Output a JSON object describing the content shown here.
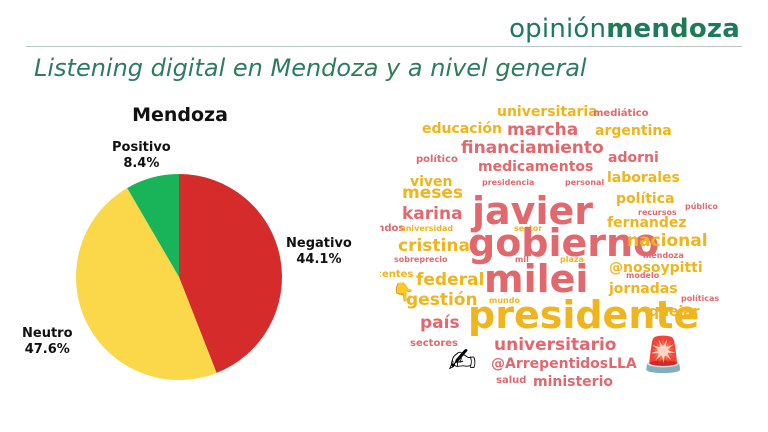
{
  "brand": {
    "prefix": "opinión",
    "suffix": "mendoza"
  },
  "page_title": "Listening digital en Mendoza y a nivel general",
  "colors": {
    "brand": "#1f7a5a",
    "positivo": "#19b35a",
    "negativo": "#d62b2b",
    "neutro": "#fbd84a",
    "cloud_red": "#e2686e",
    "cloud_yellow": "#f0b41c"
  },
  "chart_data": {
    "type": "pie",
    "title": "Mendoza",
    "slices": [
      {
        "label": "Negativo",
        "value": 44.1,
        "display": "44.1%",
        "color": "#d62b2b"
      },
      {
        "label": "Neutro",
        "value": 47.6,
        "display": "47.6%",
        "color": "#fbd84a"
      },
      {
        "label": "Positivo",
        "value": 8.4,
        "display": "8.4%",
        "color": "#19b35a"
      }
    ]
  },
  "wordcloud": {
    "words": [
      {
        "text": "universitaria",
        "color": "#f0b41c",
        "weight": 3
      },
      {
        "text": "mediático",
        "color": "#e2686e",
        "weight": 2
      },
      {
        "text": "educación",
        "color": "#f0b41c",
        "weight": 3
      },
      {
        "text": "marcha",
        "color": "#e2686e",
        "weight": 4
      },
      {
        "text": "argentina",
        "color": "#f0b41c",
        "weight": 3
      },
      {
        "text": "financiamiento",
        "color": "#e2686e",
        "weight": 4
      },
      {
        "text": "político",
        "color": "#e2686e",
        "weight": 2
      },
      {
        "text": "medicamentos",
        "color": "#e2686e",
        "weight": 3
      },
      {
        "text": "adorni",
        "color": "#e2686e",
        "weight": 3
      },
      {
        "text": "viven",
        "color": "#f0b41c",
        "weight": 3
      },
      {
        "text": "presidencia",
        "color": "#e2686e",
        "weight": 1
      },
      {
        "text": "personal",
        "color": "#e2686e",
        "weight": 1
      },
      {
        "text": "laborales",
        "color": "#f0b41c",
        "weight": 3
      },
      {
        "text": "meses",
        "color": "#f0b41c",
        "weight": 4
      },
      {
        "text": "javier",
        "color": "#e2686e",
        "weight": 6
      },
      {
        "text": "política",
        "color": "#f0b41c",
        "weight": 3
      },
      {
        "text": "público",
        "color": "#e2686e",
        "weight": 1
      },
      {
        "text": "karina",
        "color": "#e2686e",
        "weight": 4
      },
      {
        "text": "recursos",
        "color": "#e2686e",
        "weight": 1
      },
      {
        "text": "fernandez",
        "color": "#f0b41c",
        "weight": 3
      },
      {
        "text": "fondos",
        "color": "#e2686e",
        "weight": 2
      },
      {
        "text": "universidad",
        "color": "#f0b41c",
        "weight": 1
      },
      {
        "text": "sector",
        "color": "#f0b41c",
        "weight": 1
      },
      {
        "text": "cristina",
        "color": "#f0b41c",
        "weight": 4
      },
      {
        "text": "gobierno",
        "color": "#e2686e",
        "weight": 6
      },
      {
        "text": "nacional",
        "color": "#f0b41c",
        "weight": 4
      },
      {
        "text": "sobreprecio",
        "color": "#e2686e",
        "weight": 1
      },
      {
        "text": "mil",
        "color": "#e2686e",
        "weight": 1
      },
      {
        "text": "plaza",
        "color": "#f0b41c",
        "weight": 1
      },
      {
        "text": "mendoza",
        "color": "#e2686e",
        "weight": 1
      },
      {
        "text": "docentes",
        "color": "#f0b41c",
        "weight": 2
      },
      {
        "text": "federal",
        "color": "#f0b41c",
        "weight": 4
      },
      {
        "text": "milei",
        "color": "#e2686e",
        "weight": 6
      },
      {
        "text": "@nosoypitti",
        "color": "#f0b41c",
        "weight": 3
      },
      {
        "text": "modelo",
        "color": "#e2686e",
        "weight": 1
      },
      {
        "text": "gestión",
        "color": "#f0b41c",
        "weight": 4
      },
      {
        "text": "jornadas",
        "color": "#f0b41c",
        "weight": 3
      },
      {
        "text": "políticas",
        "color": "#e2686e",
        "weight": 1
      },
      {
        "text": "mundo",
        "color": "#f0b41c",
        "weight": 1
      },
      {
        "text": "país",
        "color": "#e2686e",
        "weight": 4
      },
      {
        "text": "presidente",
        "color": "#f0b41c",
        "weight": 6
      },
      {
        "text": "quejar",
        "color": "#f0b41c",
        "weight": 3
      },
      {
        "text": "universitario",
        "color": "#e2686e",
        "weight": 4
      },
      {
        "text": "sectores",
        "color": "#e2686e",
        "weight": 2
      },
      {
        "text": "@ArrepentidosLLA",
        "color": "#e2686e",
        "weight": 3
      },
      {
        "text": "salud",
        "color": "#e2686e",
        "weight": 2
      },
      {
        "text": "ministerio",
        "color": "#e2686e",
        "weight": 3
      }
    ],
    "emojis": [
      {
        "name": "pointing-down-emoji-icon",
        "glyph": "👇"
      },
      {
        "name": "writing-hand-emoji-icon",
        "glyph": "✍"
      },
      {
        "name": "siren-emoji-icon",
        "glyph": "🚨"
      }
    ]
  }
}
